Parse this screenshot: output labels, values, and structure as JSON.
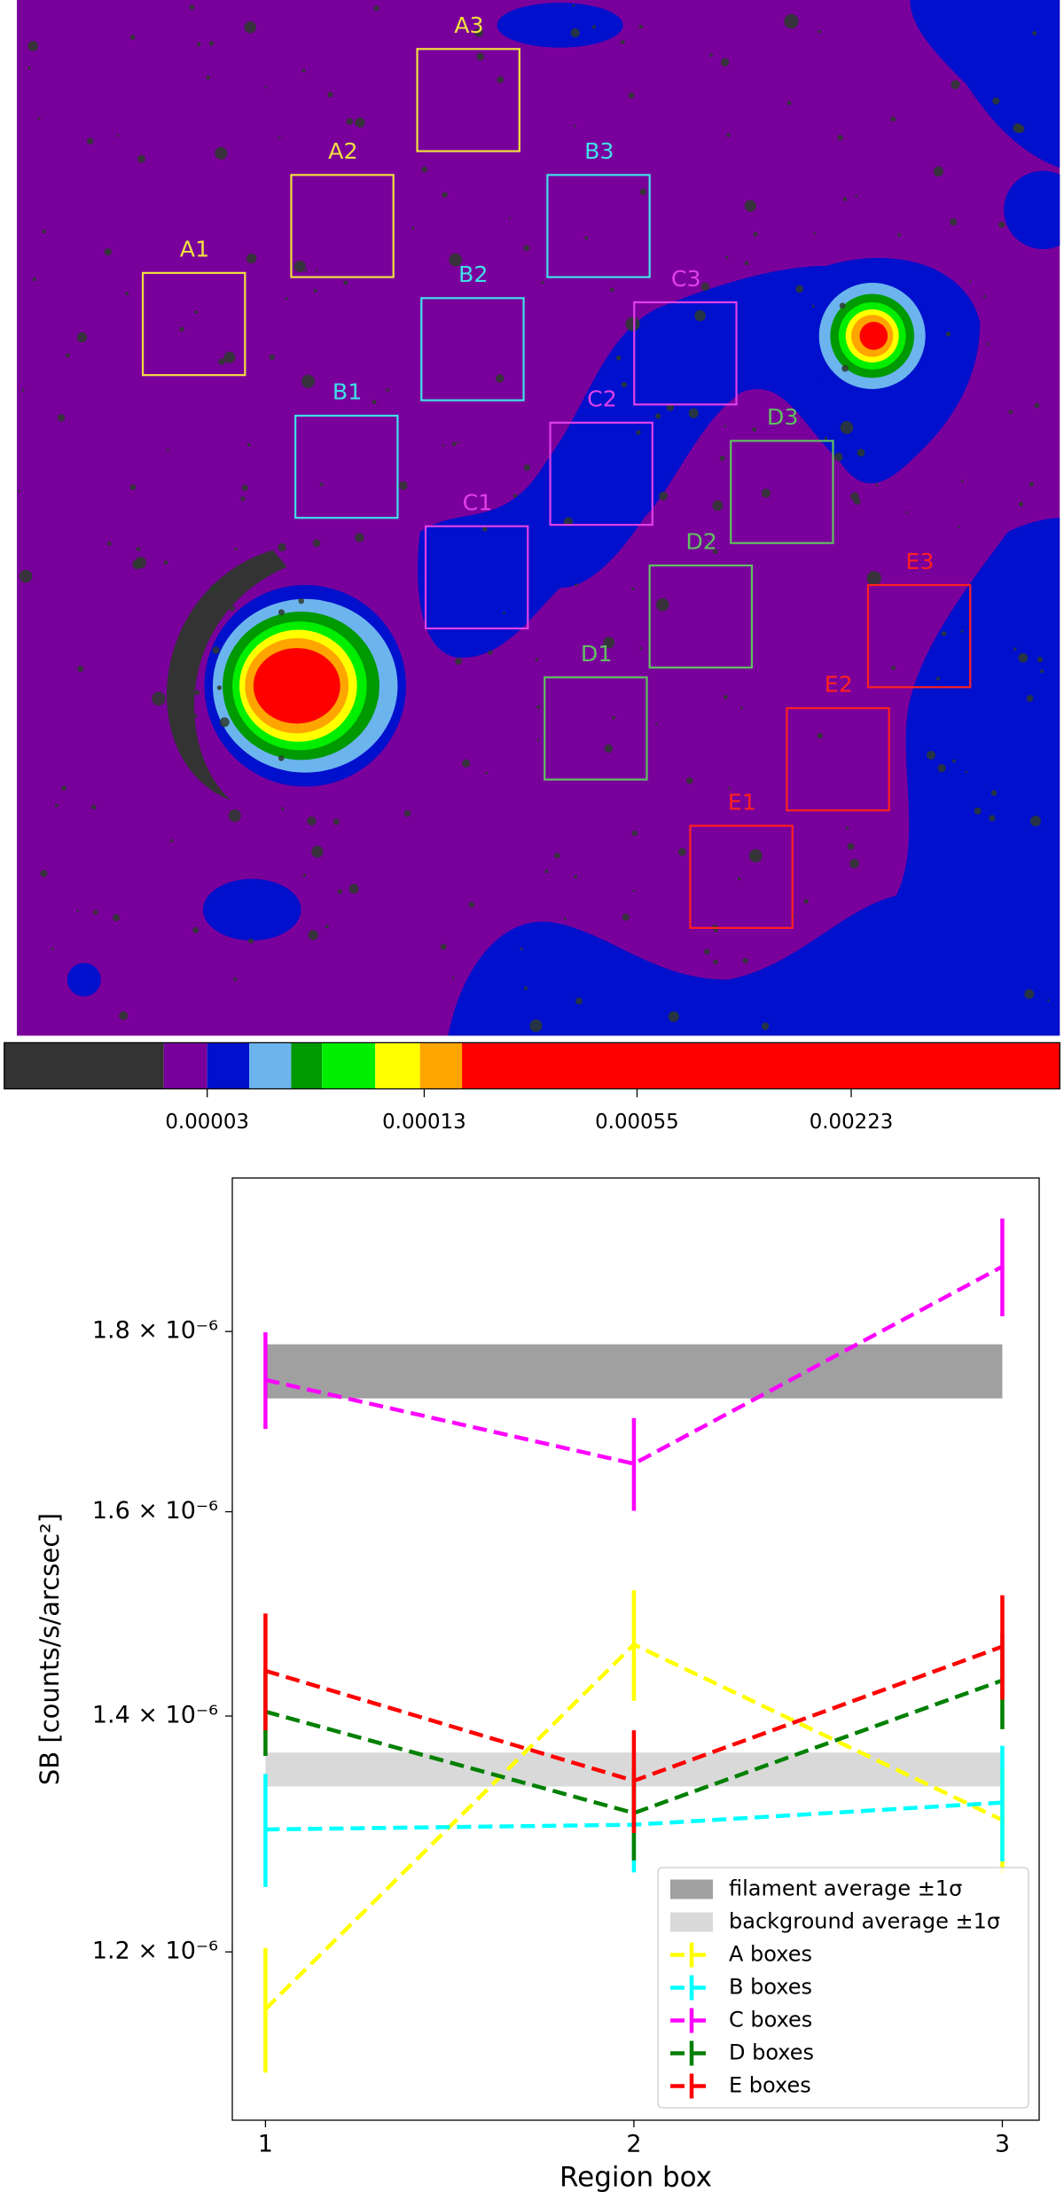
{
  "image": {
    "region_labels": [
      "A1",
      "A2",
      "A3",
      "B1",
      "B2",
      "B3",
      "C1",
      "C2",
      "C3",
      "D1",
      "D2",
      "D3",
      "E1",
      "E2",
      "E3"
    ],
    "colorbar_labels": [
      "0.00003",
      "0.00013",
      "0.00055",
      "0.00223"
    ]
  },
  "chart_data": {
    "type": "line",
    "xlabel": "Region box",
    "ylabel": "SB [counts/s/arcsec²]",
    "x": [
      1,
      2,
      3
    ],
    "xlim": [
      0.91,
      3.1
    ],
    "xticks": [
      1,
      2,
      3
    ],
    "ylim": [
      1.075e-06,
      1.99e-06
    ],
    "ylog": true,
    "yticks": [
      {
        "value": 1.2e-06,
        "label": "1.2 × 10⁻⁶"
      },
      {
        "value": 1.4e-06,
        "label": "1.4 × 10⁻⁶"
      },
      {
        "value": 1.6e-06,
        "label": "1.6 × 10⁻⁶"
      },
      {
        "value": 1.8e-06,
        "label": "1.8 × 10⁻⁶"
      }
    ],
    "legend": "lower right",
    "bands": [
      {
        "name": "filament average ±1σ",
        "color": "#a0a0a0",
        "value": 1.754e-06,
        "error": 3.1e-08
      },
      {
        "name": "background average ±1σ",
        "color": "#d9d9d9",
        "value": 1.352e-06,
        "error": 1.5e-08
      }
    ],
    "series": [
      {
        "name": "A boxes",
        "color": "#ffff00",
        "values": [
          1.156e-06,
          1.467e-06,
          1.308e-06
        ],
        "errors": [
          4.7e-08,
          5.3e-08,
          4.5e-08
        ]
      },
      {
        "name": "B boxes",
        "color": "#00ffff",
        "values": [
          1.3e-06,
          1.304e-06,
          1.323e-06
        ],
        "errors": [
          4.8e-08,
          4e-08,
          5e-08
        ]
      },
      {
        "name": "C boxes",
        "color": "#ff00ff",
        "values": [
          1.744e-06,
          1.651e-06,
          1.878e-06
        ],
        "errors": [
          5.5e-08,
          5e-08,
          6e-08
        ]
      },
      {
        "name": "D boxes",
        "color": "#008000",
        "values": [
          1.404e-06,
          1.314e-06,
          1.433e-06
        ],
        "errors": [
          4e-08,
          4e-08,
          4.5e-08
        ]
      },
      {
        "name": "E boxes",
        "color": "#ff0000",
        "values": [
          1.442e-06,
          1.342e-06,
          1.465e-06
        ],
        "errors": [
          5.5e-08,
          4.5e-08,
          5e-08
        ]
      }
    ]
  }
}
